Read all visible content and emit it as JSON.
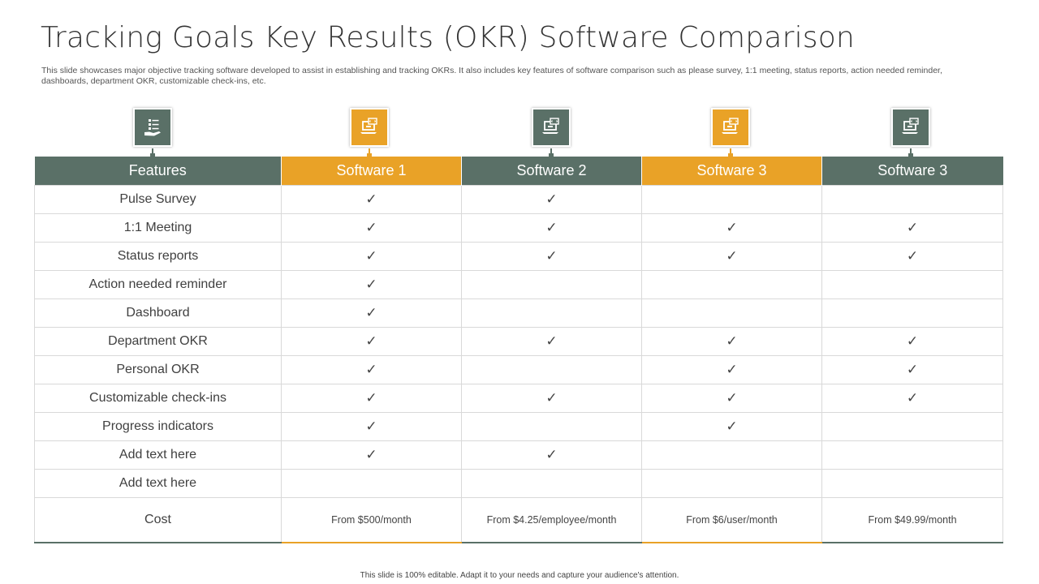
{
  "title": "Tracking Goals Key Results (OKR) Software Comparison",
  "subtitle": "This slide showcases major objective tracking software developed to assist in establishing and tracking OKRs. It also includes key features of software comparison such as please survey, 1:1 meeting, status reports, action needed reminder, dashboards, department OKR, customizable check-ins, etc.",
  "colors": {
    "green": "#5a7067",
    "orange": "#e9a227"
  },
  "icons": [
    "checklist-hand-icon",
    "laptop-code-icon",
    "laptop-code-icon",
    "laptop-code-icon",
    "laptop-code-icon"
  ],
  "table": {
    "headers": [
      "Features",
      "Software 1",
      "Software 2",
      "Software 3",
      "Software 3"
    ],
    "check_mark": "✓",
    "rows": [
      {
        "feature": "Pulse Survey",
        "checks": [
          "✓",
          "✓",
          "",
          ""
        ]
      },
      {
        "feature": "1:1 Meeting",
        "checks": [
          "✓",
          "✓",
          "✓",
          "✓"
        ]
      },
      {
        "feature": "Status reports",
        "checks": [
          "✓",
          "✓",
          "✓",
          "✓"
        ]
      },
      {
        "feature": "Action needed reminder",
        "checks": [
          "✓",
          "",
          "",
          ""
        ]
      },
      {
        "feature": "Dashboard",
        "checks": [
          "✓",
          "",
          "",
          ""
        ]
      },
      {
        "feature": "Department OKR",
        "checks": [
          "✓",
          "✓",
          "✓",
          "✓"
        ]
      },
      {
        "feature": "Personal OKR",
        "checks": [
          "✓",
          "",
          "✓",
          "✓"
        ]
      },
      {
        "feature": "Customizable check-ins",
        "checks": [
          "✓",
          "✓",
          "✓",
          "✓"
        ]
      },
      {
        "feature": "Progress indicators",
        "checks": [
          "✓",
          "",
          "✓",
          ""
        ]
      },
      {
        "feature": "Add text here",
        "checks": [
          "✓",
          "✓",
          "",
          ""
        ]
      },
      {
        "feature": "Add text here",
        "checks": [
          "",
          "",
          "",
          ""
        ]
      }
    ],
    "cost": {
      "label": "Cost",
      "values": [
        "From $500/month",
        "From $4.25/employee/month",
        "From $6/user/month",
        "From $49.99/month"
      ]
    }
  },
  "footer": "This slide is 100% editable. Adapt it to your needs and capture your audience's attention."
}
